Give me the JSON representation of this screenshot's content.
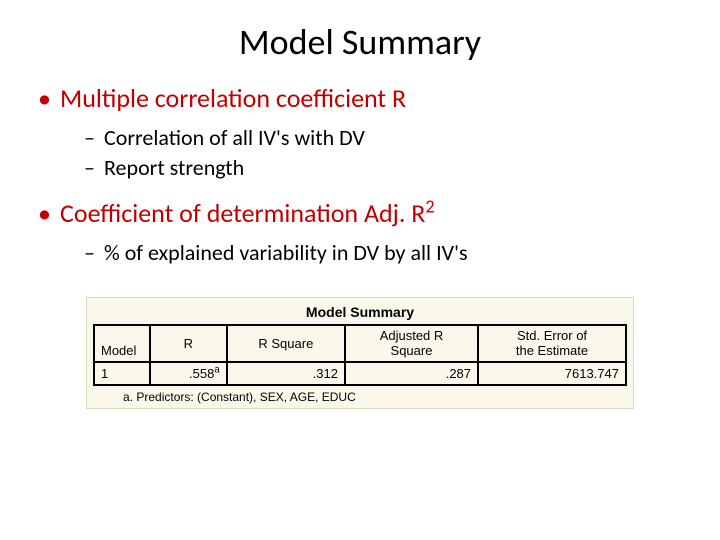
{
  "title": "Model Summary",
  "bullets": {
    "b1": "Multiple correlation coefficient R",
    "b1a": "Correlation of all IV's with DV",
    "b1b": "Report strength",
    "b2_pre": "Coefficient of determination Adj. R",
    "b2_sup": "2",
    "b2a": "% of explained variability in DV by all IV's"
  },
  "table": {
    "caption": "Model Summary",
    "headers": {
      "h0": "Model",
      "h1": "R",
      "h2": "R Square",
      "h3_line1": "Adjusted R",
      "h3_line2": "Square",
      "h4_line1": "Std. Error of",
      "h4_line2": "the Estimate"
    },
    "row": {
      "model": "1",
      "r_val": ".558",
      "r_sup": "a",
      "rsq": ".312",
      "adjrsq": ".287",
      "stderr": "7613.747"
    },
    "footnote": "a. Predictors: (Constant), SEX, AGE, EDUC"
  },
  "colors": {
    "accent": "#c00000",
    "table_bg": "#faf8ea"
  }
}
